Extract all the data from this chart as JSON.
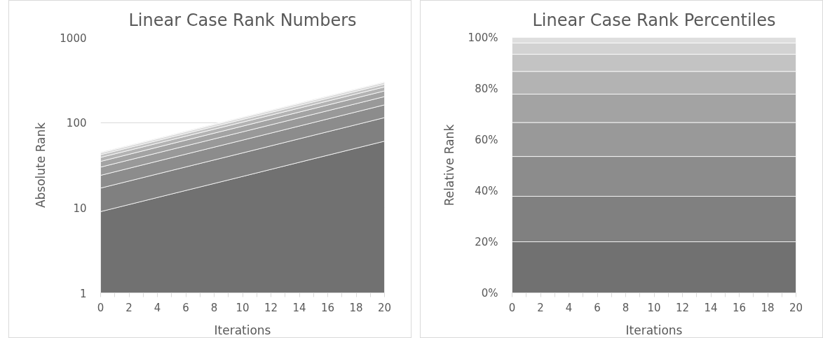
{
  "chart_data": [
    {
      "type": "area",
      "stacked": true,
      "log": "y",
      "title": "Linear Case Rank Numbers",
      "xlabel": "Iterations",
      "ylabel": "Absolute Rank",
      "grid": "y",
      "x": [
        0,
        5,
        10,
        15,
        20
      ],
      "xlim": [
        0,
        20
      ],
      "xticks": [
        0,
        {
          "value": 1,
          "label": null
        },
        2,
        {
          "value": 3,
          "label": null
        },
        4,
        {
          "value": 5,
          "label": null
        },
        6,
        {
          "value": 7,
          "label": null
        },
        8,
        {
          "value": 9,
          "label": null
        },
        10,
        {
          "value": 11,
          "label": null
        },
        12,
        {
          "value": 13,
          "label": null
        },
        14,
        {
          "value": 15,
          "label": null
        },
        16,
        {
          "value": 17,
          "label": null
        },
        18,
        {
          "value": 19,
          "label": null
        },
        20
      ],
      "ylim": [
        1,
        1000
      ],
      "yticks": [
        1,
        10,
        100,
        1000
      ],
      "series": [
        {
          "color": "#717171",
          "values": [
            9,
            14.5,
            23.3,
            37.6,
            60.5
          ]
        },
        {
          "color": "#808080",
          "values": [
            8,
            12.9,
            20.7,
            33.4,
            53.8
          ]
        },
        {
          "color": "#8c8c8c",
          "values": [
            7,
            11.3,
            18.2,
            29.2,
            47.1
          ]
        },
        {
          "color": "#999999",
          "values": [
            6,
            9.7,
            15.6,
            25.1,
            40.4
          ]
        },
        {
          "color": "#a3a3a3",
          "values": [
            5,
            8.1,
            13.0,
            20.9,
            33.6
          ]
        },
        {
          "color": "#b3b3b3",
          "values": [
            4,
            6.4,
            10.4,
            16.7,
            26.9
          ]
        },
        {
          "color": "#c3c3c3",
          "values": [
            3,
            4.8,
            7.8,
            12.5,
            20.2
          ]
        },
        {
          "color": "#d2d2d2",
          "values": [
            2,
            3.2,
            5.2,
            8.4,
            13.5
          ]
        },
        {
          "color": "#dedede",
          "values": [
            1,
            1.6,
            2.6,
            4.2,
            6.7
          ]
        }
      ]
    },
    {
      "type": "area",
      "stacked": true,
      "title": "Linear Case Rank Percentiles",
      "xlabel": "Iterations",
      "ylabel": "Relative Rank",
      "x": [
        0,
        20
      ],
      "xlim": [
        0,
        20
      ],
      "xticks": [
        0,
        {
          "value": 1,
          "label": null
        },
        2,
        {
          "value": 3,
          "label": null
        },
        4,
        {
          "value": 5,
          "label": null
        },
        6,
        {
          "value": 7,
          "label": null
        },
        8,
        {
          "value": 9,
          "label": null
        },
        10,
        {
          "value": 11,
          "label": null
        },
        12,
        {
          "value": 13,
          "label": null
        },
        14,
        {
          "value": 15,
          "label": null
        },
        16,
        {
          "value": 17,
          "label": null
        },
        18,
        {
          "value": 19,
          "label": null
        },
        20
      ],
      "ylim": [
        0,
        100
      ],
      "yticks": [
        {
          "value": 0,
          "label": "0%"
        },
        {
          "value": 20,
          "label": "20%"
        },
        {
          "value": 40,
          "label": "40%"
        },
        {
          "value": 60,
          "label": "60%"
        },
        {
          "value": 80,
          "label": "80%"
        },
        {
          "value": 100,
          "label": "100%"
        }
      ],
      "series": [
        {
          "color": "#717171",
          "values": [
            20,
            20
          ]
        },
        {
          "color": "#808080",
          "values": [
            17.8,
            17.8
          ]
        },
        {
          "color": "#8c8c8c",
          "values": [
            15.6,
            15.6
          ]
        },
        {
          "color": "#999999",
          "values": [
            13.3,
            13.3
          ]
        },
        {
          "color": "#a3a3a3",
          "values": [
            11.1,
            11.1
          ]
        },
        {
          "color": "#b3b3b3",
          "values": [
            8.9,
            8.9
          ]
        },
        {
          "color": "#c3c3c3",
          "values": [
            6.7,
            6.7
          ]
        },
        {
          "color": "#d2d2d2",
          "values": [
            4.4,
            4.4
          ]
        },
        {
          "color": "#dedede",
          "values": [
            2.2,
            2.2
          ]
        }
      ]
    }
  ]
}
